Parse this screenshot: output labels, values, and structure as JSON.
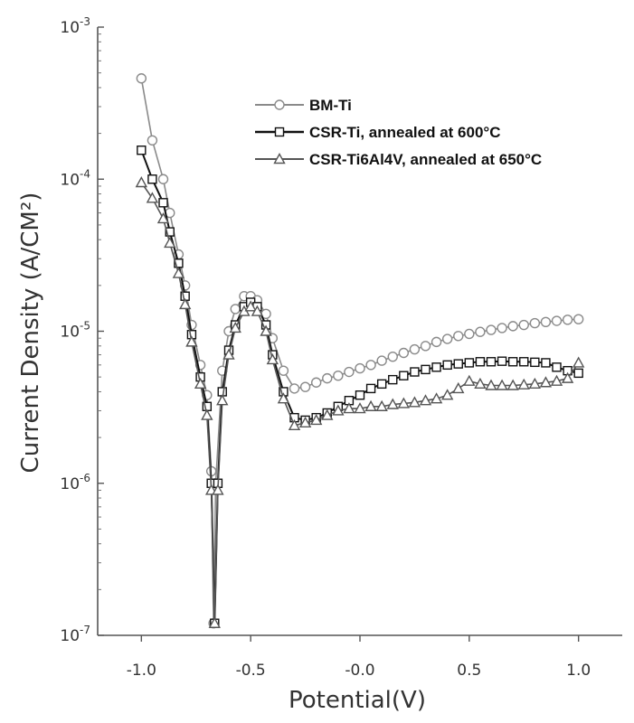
{
  "chart_data": {
    "type": "line",
    "xlabel": "Potential(V)",
    "ylabel": "Current Density (A/CM²)",
    "xlim": [
      -1.2,
      1.2
    ],
    "ylim_log10": [
      -7,
      -3
    ],
    "yscale": "log",
    "x_ticks": [
      -1.0,
      -0.5,
      0.0,
      0.5,
      1.0
    ],
    "x_tick_labels": [
      "-1.0",
      "-0.5",
      "-0.0",
      "0.5",
      "1.0"
    ],
    "y_ticks_exp": [
      -7,
      -6,
      -5,
      -4,
      -3
    ],
    "grid": false,
    "legend_position": "top-right",
    "series": [
      {
        "name": "BM-Ti",
        "marker": "circle",
        "color": "#8a8a8a",
        "points": [
          [
            -1.0,
            0.00046
          ],
          [
            -0.95,
            0.00018
          ],
          [
            -0.9,
            0.0001
          ],
          [
            -0.87,
            6e-05
          ],
          [
            -0.83,
            3.2e-05
          ],
          [
            -0.8,
            2e-05
          ],
          [
            -0.77,
            1.1e-05
          ],
          [
            -0.73,
            6e-06
          ],
          [
            -0.7,
            3.8e-06
          ],
          [
            -0.68,
            1.2e-06
          ],
          [
            -0.67,
            1.2e-07
          ],
          [
            -0.66,
            1e-06
          ],
          [
            -0.63,
            5.5e-06
          ],
          [
            -0.6,
            1e-05
          ],
          [
            -0.57,
            1.4e-05
          ],
          [
            -0.53,
            1.7e-05
          ],
          [
            -0.5,
            1.7e-05
          ],
          [
            -0.47,
            1.6e-05
          ],
          [
            -0.43,
            1.3e-05
          ],
          [
            -0.4,
            9e-06
          ],
          [
            -0.35,
            5.5e-06
          ],
          [
            -0.3,
            4.2e-06
          ],
          [
            -0.25,
            4.3e-06
          ],
          [
            -0.2,
            4.6e-06
          ],
          [
            -0.15,
            4.9e-06
          ],
          [
            -0.1,
            5.1e-06
          ],
          [
            -0.05,
            5.4e-06
          ],
          [
            0.0,
            5.7e-06
          ],
          [
            0.05,
            6e-06
          ],
          [
            0.1,
            6.4e-06
          ],
          [
            0.15,
            6.8e-06
          ],
          [
            0.2,
            7.2e-06
          ],
          [
            0.25,
            7.6e-06
          ],
          [
            0.3,
            8e-06
          ],
          [
            0.35,
            8.5e-06
          ],
          [
            0.4,
            8.9e-06
          ],
          [
            0.45,
            9.3e-06
          ],
          [
            0.5,
            9.6e-06
          ],
          [
            0.55,
            9.9e-06
          ],
          [
            0.6,
            1.02e-05
          ],
          [
            0.65,
            1.05e-05
          ],
          [
            0.7,
            1.08e-05
          ],
          [
            0.75,
            1.1e-05
          ],
          [
            0.8,
            1.13e-05
          ],
          [
            0.85,
            1.15e-05
          ],
          [
            0.9,
            1.17e-05
          ],
          [
            0.95,
            1.19e-05
          ],
          [
            1.0,
            1.2e-05
          ]
        ]
      },
      {
        "name": "CSR-Ti, annealed at 600°C",
        "marker": "square",
        "color": "#111111",
        "points": [
          [
            -1.0,
            0.000155
          ],
          [
            -0.95,
            0.0001
          ],
          [
            -0.9,
            7e-05
          ],
          [
            -0.87,
            4.5e-05
          ],
          [
            -0.83,
            2.8e-05
          ],
          [
            -0.8,
            1.7e-05
          ],
          [
            -0.77,
            9.5e-06
          ],
          [
            -0.73,
            5e-06
          ],
          [
            -0.7,
            3.2e-06
          ],
          [
            -0.68,
            1e-06
          ],
          [
            -0.665,
            1.2e-07
          ],
          [
            -0.65,
            1e-06
          ],
          [
            -0.63,
            4e-06
          ],
          [
            -0.6,
            7.5e-06
          ],
          [
            -0.57,
            1.1e-05
          ],
          [
            -0.53,
            1.45e-05
          ],
          [
            -0.5,
            1.55e-05
          ],
          [
            -0.47,
            1.45e-05
          ],
          [
            -0.43,
            1.1e-05
          ],
          [
            -0.4,
            7e-06
          ],
          [
            -0.35,
            4e-06
          ],
          [
            -0.3,
            2.7e-06
          ],
          [
            -0.25,
            2.6e-06
          ],
          [
            -0.2,
            2.7e-06
          ],
          [
            -0.15,
            2.9e-06
          ],
          [
            -0.1,
            3.2e-06
          ],
          [
            -0.05,
            3.5e-06
          ],
          [
            0.0,
            3.8e-06
          ],
          [
            0.05,
            4.2e-06
          ],
          [
            0.1,
            4.5e-06
          ],
          [
            0.15,
            4.8e-06
          ],
          [
            0.2,
            5.1e-06
          ],
          [
            0.25,
            5.4e-06
          ],
          [
            0.3,
            5.6e-06
          ],
          [
            0.35,
            5.8e-06
          ],
          [
            0.4,
            6e-06
          ],
          [
            0.45,
            6.1e-06
          ],
          [
            0.5,
            6.2e-06
          ],
          [
            0.55,
            6.3e-06
          ],
          [
            0.6,
            6.3e-06
          ],
          [
            0.65,
            6.35e-06
          ],
          [
            0.7,
            6.3e-06
          ],
          [
            0.75,
            6.3e-06
          ],
          [
            0.8,
            6.25e-06
          ],
          [
            0.85,
            6.2e-06
          ],
          [
            0.9,
            5.8e-06
          ],
          [
            0.95,
            5.5e-06
          ],
          [
            1.0,
            5.3e-06
          ]
        ]
      },
      {
        "name": "CSR-Ti6Al4V, annealed at 650°C",
        "marker": "triangle",
        "color": "#555555",
        "points": [
          [
            -1.0,
            9.5e-05
          ],
          [
            -0.95,
            7.5e-05
          ],
          [
            -0.9,
            5.5e-05
          ],
          [
            -0.87,
            3.8e-05
          ],
          [
            -0.83,
            2.4e-05
          ],
          [
            -0.8,
            1.5e-05
          ],
          [
            -0.77,
            8.5e-06
          ],
          [
            -0.73,
            4.5e-06
          ],
          [
            -0.7,
            2.8e-06
          ],
          [
            -0.68,
            9e-07
          ],
          [
            -0.665,
            1.2e-07
          ],
          [
            -0.65,
            9e-07
          ],
          [
            -0.63,
            3.5e-06
          ],
          [
            -0.6,
            7e-06
          ],
          [
            -0.57,
            1.05e-05
          ],
          [
            -0.53,
            1.35e-05
          ],
          [
            -0.5,
            1.45e-05
          ],
          [
            -0.47,
            1.35e-05
          ],
          [
            -0.43,
            1e-05
          ],
          [
            -0.4,
            6.5e-06
          ],
          [
            -0.35,
            3.6e-06
          ],
          [
            -0.3,
            2.4e-06
          ],
          [
            -0.25,
            2.5e-06
          ],
          [
            -0.2,
            2.6e-06
          ],
          [
            -0.15,
            2.8e-06
          ],
          [
            -0.1,
            3e-06
          ],
          [
            -0.05,
            3.1e-06
          ],
          [
            0.0,
            3.1e-06
          ],
          [
            0.05,
            3.2e-06
          ],
          [
            0.1,
            3.2e-06
          ],
          [
            0.15,
            3.3e-06
          ],
          [
            0.2,
            3.35e-06
          ],
          [
            0.25,
            3.4e-06
          ],
          [
            0.3,
            3.5e-06
          ],
          [
            0.35,
            3.6e-06
          ],
          [
            0.4,
            3.8e-06
          ],
          [
            0.45,
            4.2e-06
          ],
          [
            0.5,
            4.7e-06
          ],
          [
            0.55,
            4.5e-06
          ],
          [
            0.6,
            4.4e-06
          ],
          [
            0.65,
            4.4e-06
          ],
          [
            0.7,
            4.4e-06
          ],
          [
            0.75,
            4.45e-06
          ],
          [
            0.8,
            4.5e-06
          ],
          [
            0.85,
            4.6e-06
          ],
          [
            0.9,
            4.7e-06
          ],
          [
            0.95,
            4.9e-06
          ],
          [
            1.0,
            6.2e-06
          ]
        ]
      }
    ]
  }
}
